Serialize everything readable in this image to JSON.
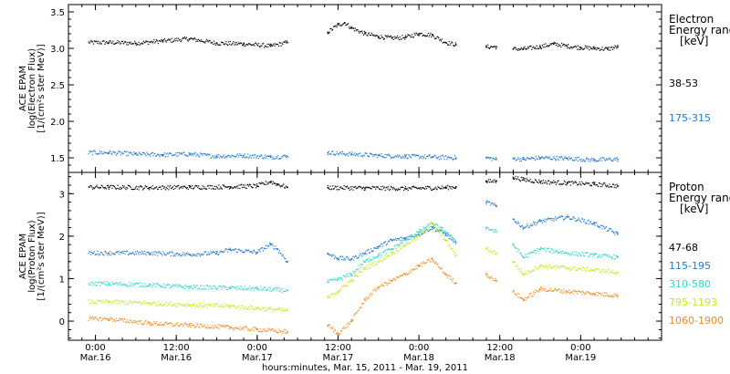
{
  "chart_data": [
    {
      "type": "scatter",
      "ylabel_lines": [
        "ACE EPAM",
        "log(Electron Flux)",
        "[1/(cm²s ster MeV)]"
      ],
      "ylim": [
        1.3,
        3.6
      ],
      "yticks": [
        1.5,
        2.0,
        2.5,
        3.0,
        3.5
      ],
      "ytick_labels": [
        "1.5",
        "2.0",
        "2.5",
        "3.0",
        "3.5"
      ],
      "legend_title": [
        "Electron",
        "Energy range",
        "[keV]"
      ],
      "series": [
        {
          "name": "38-53",
          "color": "#000000",
          "x": [
            2,
            6,
            10,
            14,
            18,
            22,
            26,
            28.5,
            34.5,
            36,
            37,
            38,
            40,
            42,
            44,
            46,
            48,
            50,
            52,
            53.5,
            58,
            59.5,
            62,
            63.5,
            66,
            68,
            70,
            72,
            74,
            76,
            77.5
          ],
          "y": [
            3.08,
            3.07,
            3.1,
            3.13,
            3.07,
            3.06,
            3.03,
            3.08,
            3.22,
            3.32,
            3.35,
            3.28,
            3.2,
            3.16,
            3.14,
            3.15,
            3.2,
            3.18,
            3.08,
            3.05,
            3.02,
            3.02,
            2.99,
            2.99,
            3.02,
            3.06,
            3.03,
            3.01,
            3.0,
            2.99,
            3.02
          ]
        },
        {
          "name": "175-315",
          "color": "#1f78d0",
          "x": [
            2,
            6,
            10,
            14,
            18,
            22,
            26,
            28.5,
            34.5,
            38,
            42,
            46,
            50,
            53.5,
            58,
            59.5,
            62,
            63.5,
            66,
            70,
            74,
            77.5
          ],
          "y": [
            1.57,
            1.55,
            1.54,
            1.55,
            1.52,
            1.53,
            1.51,
            1.52,
            1.57,
            1.55,
            1.53,
            1.52,
            1.51,
            1.5,
            1.5,
            1.48,
            1.49,
            1.48,
            1.5,
            1.49,
            1.47,
            1.48
          ]
        }
      ]
    },
    {
      "type": "scatter",
      "ylabel_lines": [
        "ACE EPAM",
        "log(Proton Flux)",
        "[1/(cm²s ster MeV)]"
      ],
      "ylim": [
        -0.45,
        3.5
      ],
      "yticks": [
        0,
        1,
        2,
        3
      ],
      "ytick_labels": [
        "0",
        "1",
        "2",
        "3"
      ],
      "legend_title": [
        "Proton",
        "Energy range",
        "[keV]"
      ],
      "series": [
        {
          "name": "47-68",
          "color": "#000000",
          "x": [
            2,
            8,
            14,
            20,
            24,
            26,
            27,
            28.5,
            34.5,
            40,
            46,
            52,
            53.5,
            58,
            59.5,
            62,
            63.5,
            66,
            70,
            74,
            77.5
          ],
          "y": [
            3.15,
            3.14,
            3.15,
            3.16,
            3.18,
            3.28,
            3.22,
            3.15,
            3.14,
            3.13,
            3.12,
            3.14,
            3.16,
            3.28,
            3.3,
            3.38,
            3.33,
            3.28,
            3.25,
            3.22,
            3.18
          ]
        },
        {
          "name": "115-195",
          "color": "#1f78d0",
          "x": [
            2,
            8,
            14,
            18,
            20,
            24,
            26,
            27,
            28.5,
            34.5,
            36,
            38,
            40,
            42,
            44,
            46,
            48,
            50,
            52,
            53.5,
            58,
            59.5,
            62,
            63.5,
            66,
            70,
            74,
            77.5
          ],
          "y": [
            1.6,
            1.6,
            1.57,
            1.6,
            1.68,
            1.62,
            1.8,
            1.7,
            1.4,
            1.58,
            1.48,
            1.46,
            1.6,
            1.75,
            1.9,
            1.95,
            2.05,
            2.2,
            2.05,
            1.85,
            2.8,
            2.7,
            2.4,
            2.2,
            2.35,
            2.45,
            2.3,
            2.05
          ]
        },
        {
          "name": "310-580",
          "color": "#2ed8c8",
          "x": [
            2,
            8,
            14,
            20,
            24,
            28.5,
            34.5,
            36,
            38,
            40,
            42,
            44,
            46,
            48,
            50,
            52,
            53.5,
            58,
            59.5,
            62,
            63.5,
            66,
            70,
            74,
            77.5
          ],
          "y": [
            0.88,
            0.85,
            0.8,
            0.78,
            0.76,
            0.72,
            0.92,
            0.98,
            1.1,
            1.4,
            1.55,
            1.7,
            1.9,
            2.1,
            2.3,
            2.1,
            1.85,
            2.2,
            2.1,
            1.8,
            1.5,
            1.7,
            1.6,
            1.55,
            1.5
          ]
        },
        {
          "name": "795-1193",
          "color": "#c8e818",
          "x": [
            2,
            8,
            14,
            20,
            24,
            28.5,
            34.5,
            36,
            38,
            40,
            42,
            44,
            46,
            48,
            50,
            52,
            53.5,
            58,
            59.5,
            62,
            63.5,
            66,
            70,
            74,
            77.5
          ],
          "y": [
            0.45,
            0.42,
            0.38,
            0.35,
            0.3,
            0.25,
            0.55,
            0.7,
            0.95,
            1.25,
            1.4,
            1.6,
            1.8,
            2.0,
            2.3,
            1.9,
            1.55,
            1.7,
            1.6,
            1.4,
            1.1,
            1.3,
            1.25,
            1.2,
            1.15
          ]
        },
        {
          "name": "1060-1900",
          "color": "#f08a1c",
          "x": [
            2,
            8,
            14,
            20,
            24,
            28.5,
            34.5,
            36,
            38,
            40,
            42,
            44,
            46,
            48,
            50,
            52,
            53.5,
            58,
            59.5,
            62,
            63.5,
            66,
            70,
            74,
            77.5
          ],
          "y": [
            0.05,
            -0.05,
            -0.1,
            -0.15,
            -0.2,
            -0.25,
            -0.1,
            -0.3,
            0.0,
            0.5,
            0.8,
            0.95,
            1.1,
            1.3,
            1.45,
            1.1,
            0.9,
            1.1,
            0.95,
            0.7,
            0.5,
            0.75,
            0.7,
            0.65,
            0.6
          ]
        }
      ]
    }
  ],
  "x_axis": {
    "xlim": [
      -4,
      84
    ],
    "ticks": [
      0,
      12,
      24,
      36,
      48,
      60,
      72,
      84
    ],
    "tick_labels": [
      "0:00",
      "12:00",
      "0:00",
      "12:00",
      "0:00",
      "12:00",
      "0:00"
    ],
    "tick_label_positions": [
      0,
      12,
      24,
      36,
      48,
      60,
      72
    ],
    "date_labels": [
      "Mar.16",
      "Mar.16",
      "Mar.17",
      "Mar.17",
      "Mar.18",
      "Mar.18",
      "Mar.19"
    ],
    "xlabel": "hours:minutes, Mar. 15, 2011 - Mar. 19, 2011"
  }
}
